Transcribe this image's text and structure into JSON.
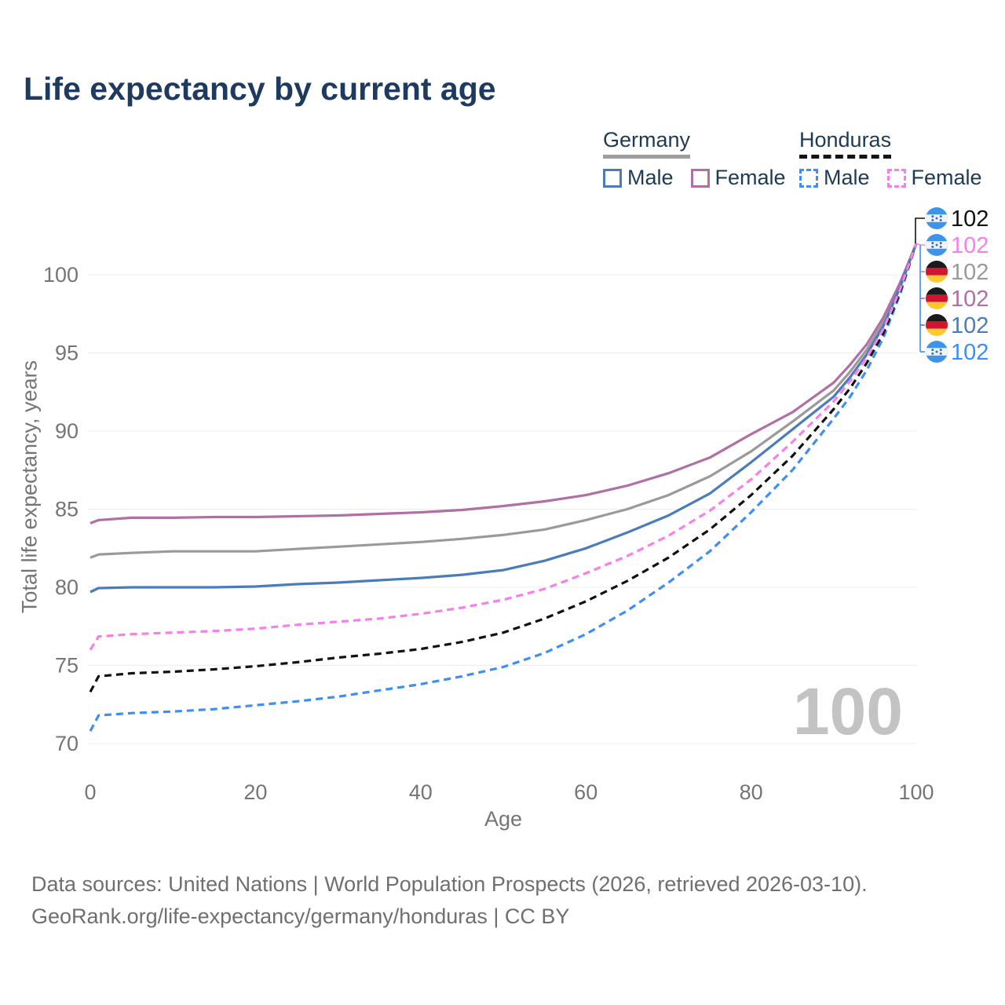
{
  "title": "Life expectancy by current age",
  "legend": {
    "groups": [
      {
        "label": "Germany",
        "line_style": "solid",
        "line_color": "#9a9a9a",
        "items": [
          {
            "label": "Male",
            "color": "#4a7cba",
            "dashed": false
          },
          {
            "label": "Female",
            "color": "#b06fa5",
            "dashed": false
          }
        ]
      },
      {
        "label": "Honduras",
        "line_style": "dashed",
        "line_color": "#141414",
        "items": [
          {
            "label": "Male",
            "color": "#3e8ef5",
            "dashed": true
          },
          {
            "label": "Female",
            "color": "#f87fe9",
            "dashed": true
          }
        ]
      }
    ]
  },
  "watermark": "100",
  "footer": {
    "line1": "Data sources: United Nations | World Population Prospects (2026, retrieved 2026-03-10).",
    "line2": "GeoRank.org/life-expectancy/germany/honduras | CC BY"
  },
  "chart_data": {
    "type": "line",
    "title": "Life expectancy by current age",
    "xlabel": "Age",
    "ylabel": "Total life expectancy, years",
    "xlim": [
      0,
      100
    ],
    "ylim": [
      70,
      102
    ],
    "xticks": [
      0,
      20,
      40,
      60,
      80,
      100
    ],
    "yticks": [
      70,
      75,
      80,
      85,
      90,
      95,
      100
    ],
    "grid": "horizontal",
    "legend_position": "top-right",
    "x": [
      0,
      1,
      5,
      10,
      15,
      20,
      25,
      30,
      35,
      40,
      45,
      50,
      55,
      60,
      65,
      70,
      75,
      80,
      85,
      90,
      92,
      94,
      96,
      98,
      100
    ],
    "series": [
      {
        "name": "Germany",
        "color": "#9a9a9a",
        "dashed": false,
        "values": [
          81.9,
          82.1,
          82.2,
          82.3,
          82.3,
          82.3,
          82.45,
          82.6,
          82.75,
          82.9,
          83.1,
          83.35,
          83.7,
          84.3,
          85.0,
          85.9,
          87.1,
          88.7,
          90.6,
          92.6,
          93.8,
          95.2,
          96.95,
          99.3,
          102
        ]
      },
      {
        "name": "Germany Female",
        "color": "#b06fa5",
        "dashed": false,
        "values": [
          84.1,
          84.3,
          84.45,
          84.45,
          84.5,
          84.5,
          84.55,
          84.6,
          84.7,
          84.8,
          84.95,
          85.2,
          85.5,
          85.9,
          86.5,
          87.3,
          88.3,
          89.8,
          91.2,
          93.1,
          94.25,
          95.55,
          97.25,
          99.45,
          102
        ]
      },
      {
        "name": "Germany Male",
        "color": "#4a7cba",
        "dashed": false,
        "values": [
          79.7,
          79.95,
          80.0,
          80.0,
          80.0,
          80.05,
          80.2,
          80.3,
          80.45,
          80.6,
          80.8,
          81.1,
          81.7,
          82.5,
          83.5,
          84.6,
          86.0,
          88.0,
          90.1,
          92.2,
          93.45,
          94.9,
          96.7,
          99.15,
          102
        ]
      },
      {
        "name": "Honduras Male",
        "color": "#3e8ef5",
        "dashed": true,
        "values": [
          70.8,
          71.8,
          71.95,
          72.05,
          72.2,
          72.45,
          72.7,
          73.0,
          73.4,
          73.8,
          74.3,
          74.9,
          75.8,
          77.0,
          78.5,
          80.3,
          82.3,
          84.8,
          87.5,
          90.8,
          92.2,
          93.9,
          95.95,
          98.7,
          102
        ]
      },
      {
        "name": "Honduras",
        "color": "#111111",
        "dashed": true,
        "values": [
          73.3,
          74.3,
          74.5,
          74.6,
          74.75,
          74.95,
          75.2,
          75.5,
          75.75,
          76.05,
          76.5,
          77.1,
          78.0,
          79.1,
          80.4,
          81.9,
          83.7,
          85.9,
          88.4,
          91.4,
          92.75,
          94.35,
          96.25,
          98.85,
          102
        ]
      },
      {
        "name": "Honduras Female",
        "color": "#f87fe9",
        "dashed": true,
        "values": [
          76.0,
          76.85,
          77.0,
          77.1,
          77.2,
          77.35,
          77.6,
          77.8,
          78.0,
          78.3,
          78.7,
          79.2,
          79.9,
          80.9,
          82.0,
          83.3,
          84.9,
          86.9,
          89.3,
          91.9,
          93.2,
          94.7,
          96.5,
          99.0,
          102
        ]
      }
    ],
    "end_labels": [
      {
        "series": "Honduras",
        "country": "honduras",
        "value": "102",
        "color": "#111111"
      },
      {
        "series": "Honduras Female",
        "country": "honduras",
        "value": "102",
        "color": "#f87fe9"
      },
      {
        "series": "Germany",
        "country": "germany",
        "value": "102",
        "color": "#9a9a9a"
      },
      {
        "series": "Germany Female",
        "country": "germany",
        "value": "102",
        "color": "#b06fa5"
      },
      {
        "series": "Germany Male",
        "country": "germany",
        "value": "102",
        "color": "#4a7cba"
      },
      {
        "series": "Honduras Male",
        "country": "honduras",
        "value": "102",
        "color": "#3e8ef5"
      }
    ]
  }
}
